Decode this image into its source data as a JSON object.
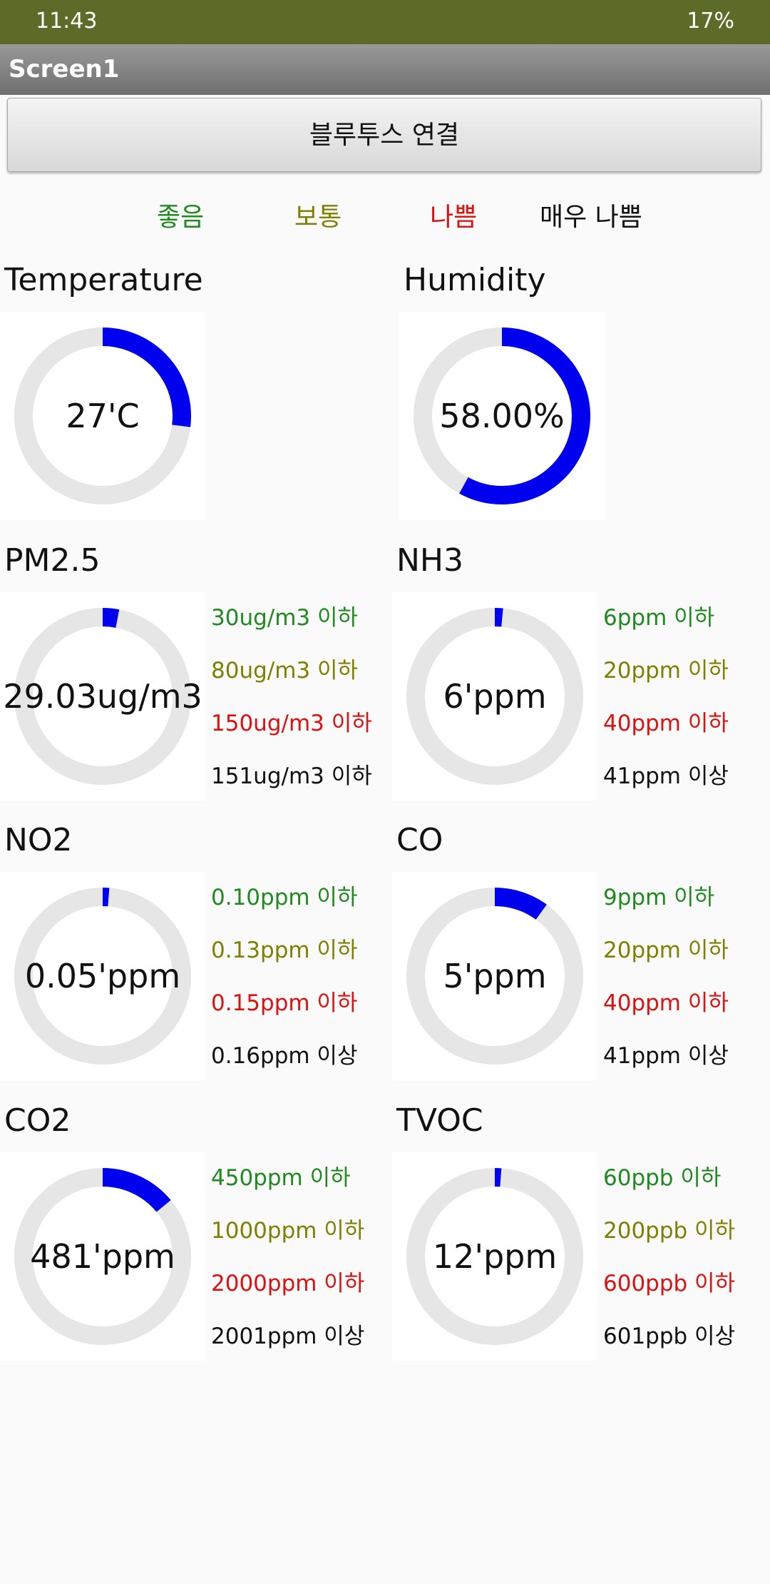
{
  "status_bar": {
    "time": "11:43",
    "battery": "17%"
  },
  "app_bar": {
    "title": "Screen1"
  },
  "button": {
    "label": "블루투스 연결"
  },
  "legend": [
    "좋음",
    "보통",
    "나쁨",
    "매우 나쁨"
  ],
  "panels": [
    {
      "title": "Temperature",
      "reading": "27'C"
    },
    {
      "title": "Humidity",
      "reading": "58.00%"
    },
    {
      "title": "PM2.5",
      "reading": "29.03ug/m3",
      "thresholds": [
        "30ug/m3 이하",
        "80ug/m3 이하",
        "150ug/m3 이하",
        "151ug/m3 이하"
      ]
    },
    {
      "title": "NH3",
      "reading": "6'ppm",
      "thresholds": [
        "6ppm 이하",
        "20ppm 이하",
        "40ppm 이하",
        "41ppm 이상"
      ]
    },
    {
      "title": "NO2",
      "reading": "0.05'ppm",
      "thresholds": [
        "0.10ppm 이하",
        "0.13ppm 이하",
        "0.15ppm 이하",
        "0.16ppm 이상"
      ]
    },
    {
      "title": "CO",
      "reading": "5'ppm",
      "thresholds": [
        "9ppm 이하",
        "20ppm 이하",
        "40ppm 이하",
        "41ppm 이상"
      ]
    },
    {
      "title": "CO2",
      "reading": "481'ppm",
      "thresholds": [
        "450ppm 이하",
        "1000ppm 이하",
        "2000ppm 이하",
        "2001ppm 이상"
      ]
    },
    {
      "title": "TVOC",
      "reading": "12'ppm",
      "thresholds": [
        "60ppb 이하",
        "200ppb 이하",
        "600ppb 이하",
        "601ppb 이상"
      ]
    }
  ]
}
